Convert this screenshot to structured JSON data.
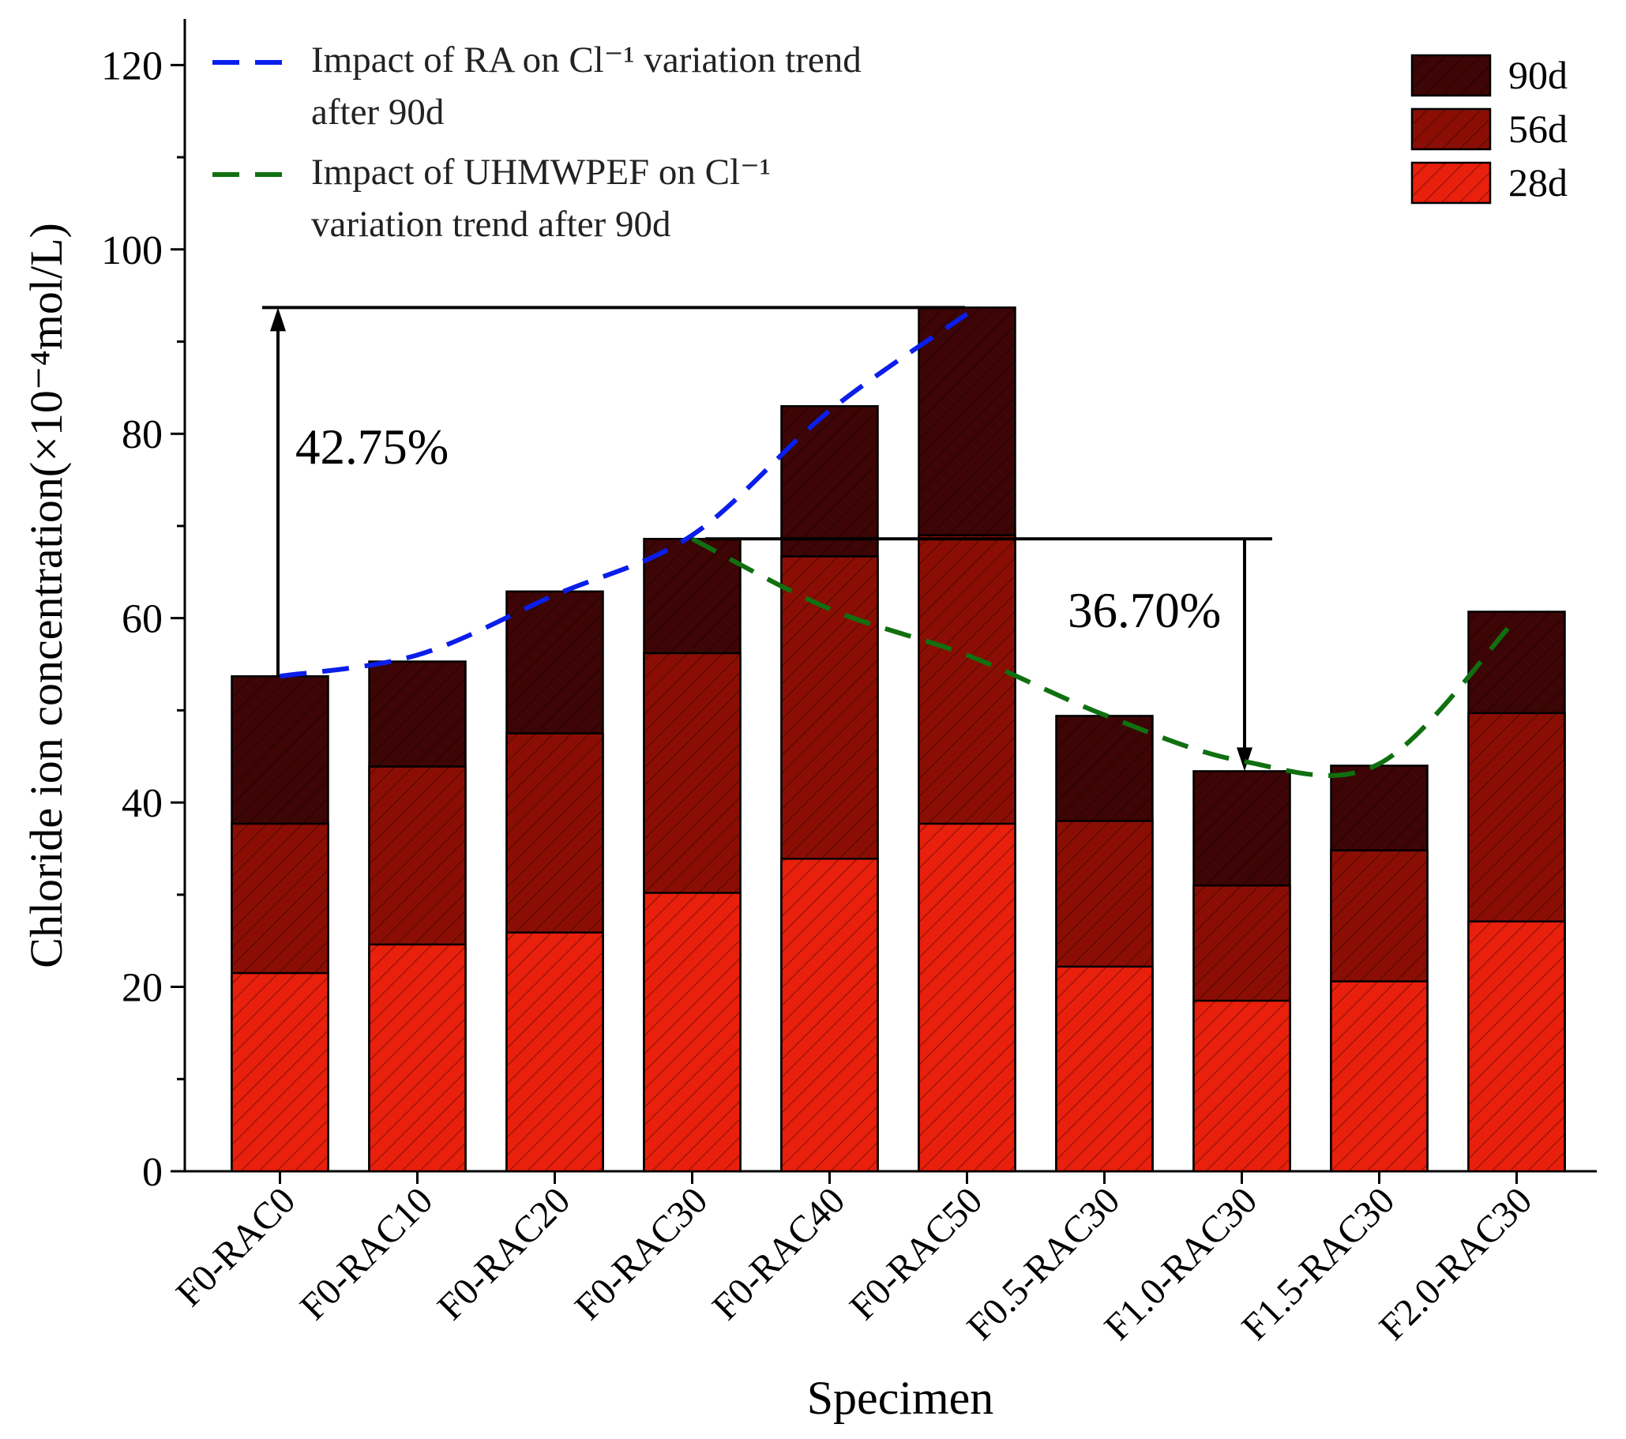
{
  "chart_data": {
    "type": "bar",
    "overlap": true,
    "xlabel": "Specimen",
    "ylabel": "Chloride ion concentration(×10⁻⁴mol/L)",
    "categories": [
      "F0-RAC0",
      "F0-RAC10",
      "F0-RAC20",
      "F0-RAC30",
      "F0-RAC40",
      "F0-RAC50",
      "F0.5-RAC30",
      "F1.0-RAC30",
      "F1.5-RAC30",
      "F2.0-RAC30"
    ],
    "series": [
      {
        "name": "28d",
        "color": "#e8200c",
        "values": [
          21.5,
          24.6,
          25.9,
          30.2,
          33.9,
          37.7,
          22.2,
          18.5,
          20.6,
          27.1
        ]
      },
      {
        "name": "56d",
        "color": "#8b0e05",
        "values": [
          37.7,
          43.9,
          47.5,
          56.2,
          66.7,
          69.0,
          38.0,
          31.0,
          34.8,
          49.7
        ]
      },
      {
        "name": "90d",
        "color": "#3d0505",
        "values": [
          53.7,
          55.3,
          62.9,
          68.6,
          83.0,
          93.7,
          49.4,
          43.4,
          44.0,
          60.7
        ]
      }
    ],
    "trend_lines": [
      {
        "name": "Impact of RA on Cl⁻¹ variation trend after 90d",
        "color": "#0a1eeb",
        "values": [
          53.7,
          56.0,
          62.5,
          69.0,
          82.5,
          93.0,
          null,
          null,
          null,
          null
        ]
      },
      {
        "name": "Impact of UHMWPEF on Cl⁻¹ variation trend after 90d",
        "color": "#107010",
        "values": [
          null,
          null,
          null,
          68.6,
          61.0,
          56.0,
          49.5,
          44.5,
          44.2,
          60.0
        ]
      }
    ],
    "annotations": [
      "42.75%",
      "36.70%"
    ],
    "ylim": [
      0,
      125
    ],
    "yticks": [
      0,
      20,
      40,
      60,
      80,
      100,
      120
    ],
    "yminorticks": [
      10,
      30,
      50,
      70,
      90,
      110
    ],
    "legend": "upper right",
    "hatch": true
  }
}
